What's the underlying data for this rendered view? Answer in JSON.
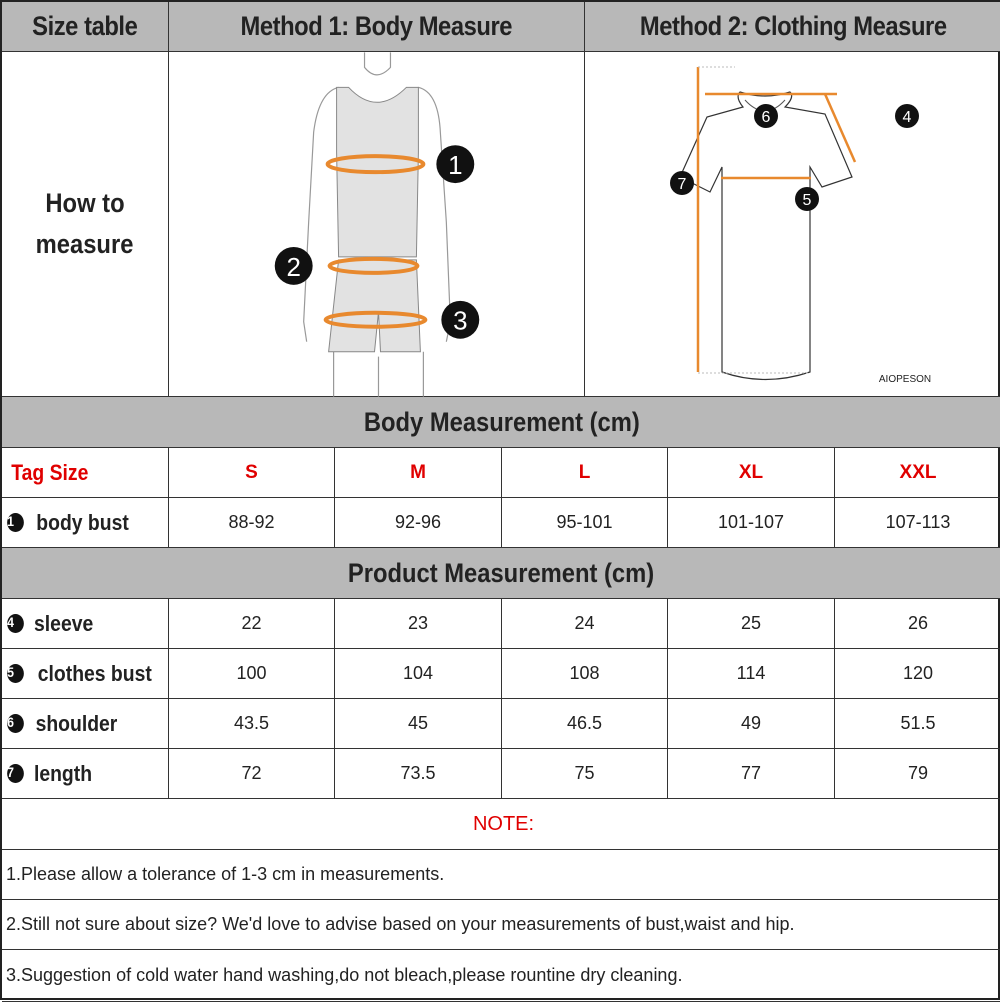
{
  "header": {
    "col1": "Size table",
    "col2": "Method 1: Body  Measure",
    "col3": "Method 2: Clothing Measure"
  },
  "how_to": {
    "line1": "How to",
    "line2": "measure",
    "brand": "AIOPESON",
    "body_markers": [
      "1",
      "2",
      "3"
    ],
    "shirt_markers": [
      "4",
      "5",
      "6",
      "7"
    ]
  },
  "accent_color": "#e8892e",
  "body_section": {
    "title": "Body Measurement (cm)",
    "tag_label": "Tag Size",
    "sizes": [
      "S",
      "M",
      "L",
      "XL",
      "XXL"
    ],
    "rows": [
      {
        "num": "1",
        "label": "body bust",
        "values": [
          "88-92",
          "92-96",
          "95-101",
          "101-107",
          "107-113"
        ]
      }
    ]
  },
  "product_section": {
    "title": "Product Measurement (cm)",
    "rows": [
      {
        "num": "4",
        "label": "sleeve",
        "values": [
          "22",
          "23",
          "24",
          "25",
          "26"
        ]
      },
      {
        "num": "5",
        "label": "clothes bust",
        "values": [
          "100",
          "104",
          "108",
          "114",
          "120"
        ]
      },
      {
        "num": "6",
        "label": "shoulder",
        "values": [
          "43.5",
          "45",
          "46.5",
          "49",
          "51.5"
        ]
      },
      {
        "num": "7",
        "label": "length",
        "values": [
          "72",
          "73.5",
          "75",
          "77",
          "79"
        ]
      }
    ]
  },
  "notes": {
    "title": "NOTE:",
    "items": [
      "1.Please allow a tolerance of 1-3 cm in measurements.",
      "2.Still not sure about size? We'd love to advise based on your measurements of bust,waist and hip.",
      "3.Suggestion of cold water hand washing,do not bleach,please rountine dry cleaning."
    ]
  }
}
